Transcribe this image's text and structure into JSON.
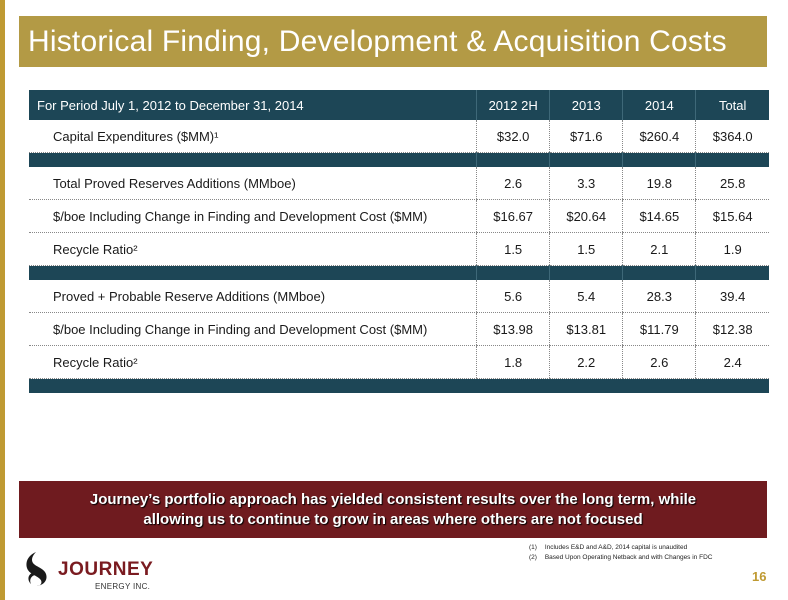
{
  "title": "Historical Finding, Development & Acquisition Costs",
  "table": {
    "header": {
      "period": "For Period July 1, 2012 to December 31, 2014",
      "columns": [
        "2012  2H",
        "2013",
        "2014",
        "Total"
      ]
    },
    "section1": [
      {
        "label": "Capital Expenditures ($MM)¹",
        "values": [
          "$32.0",
          "$71.6",
          "$260.4",
          "$364.0"
        ]
      }
    ],
    "section2": [
      {
        "label": "Total Proved Reserves Additions (MMboe)",
        "values": [
          "2.6",
          "3.3",
          "19.8",
          "25.8"
        ]
      },
      {
        "label": "$/boe Including Change in Finding and Development Cost ($MM)",
        "values": [
          "$16.67",
          "$20.64",
          "$14.65",
          "$15.64"
        ]
      },
      {
        "label": "Recycle Ratio²",
        "values": [
          "1.5",
          "1.5",
          "2.1",
          "1.9"
        ]
      }
    ],
    "section3": [
      {
        "label": "Proved + Probable Reserve Additions (MMboe)",
        "values": [
          "5.6",
          "5.4",
          "28.3",
          "39.4"
        ]
      },
      {
        "label": "$/boe Including Change in Finding and Development  Cost ($MM)",
        "values": [
          "$13.98",
          "$13.81",
          "$11.79",
          "$12.38"
        ]
      },
      {
        "label": "Recycle Ratio²",
        "values": [
          "1.8",
          "2.2",
          "2.6",
          "2.4"
        ]
      }
    ]
  },
  "callout": {
    "line1": "Journey’s portfolio approach has yielded consistent results over the long term, while",
    "line2": "allowing us to continue to grow in areas where others are not focused"
  },
  "footnotes": [
    {
      "num": "(1)",
      "text": "Includes E&D and A&D, 2014 capital is unaudited"
    },
    {
      "num": "(2)",
      "text": "Based Upon Operating Netback and with Changes in FDC"
    }
  ],
  "logo": {
    "name": "JOURNEY",
    "sub": "ENERGY INC."
  },
  "page_number": "16",
  "colors": {
    "title_bar": "#b39a45",
    "table_header": "#1d4656",
    "callout": "#6f1b1f",
    "accent": "#bf9a32",
    "logo_red": "#7a1b20"
  }
}
